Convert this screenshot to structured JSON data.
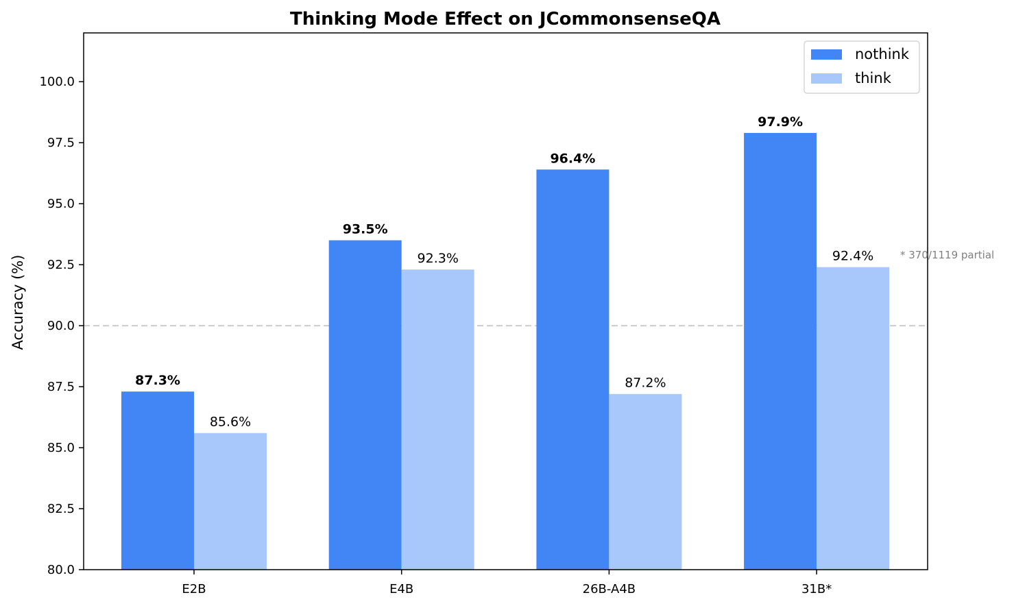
{
  "chart_data": {
    "type": "bar",
    "title": "Thinking Mode Effect on JCommonsenseQA",
    "xlabel": "",
    "ylabel": "Accuracy (%)",
    "ylim": [
      80.0,
      102.0
    ],
    "yticks": [
      "80.0",
      "82.5",
      "85.0",
      "87.5",
      "90.0",
      "92.5",
      "95.0",
      "97.5",
      "100.0"
    ],
    "yticks_values": [
      80.0,
      82.5,
      85.0,
      87.5,
      90.0,
      92.5,
      95.0,
      97.5,
      100.0
    ],
    "categories": [
      "E2B",
      "E4B",
      "26B-A4B",
      "31B*"
    ],
    "series": [
      {
        "name": "nothink",
        "color": "#4285F4",
        "values": [
          87.3,
          93.5,
          96.4,
          97.9
        ],
        "labels": [
          "87.3%",
          "93.5%",
          "96.4%",
          "97.9%"
        ],
        "label_weight": "bold"
      },
      {
        "name": "think",
        "color": "#A8C7FA",
        "values": [
          85.6,
          92.3,
          87.2,
          92.4
        ],
        "labels": [
          "85.6%",
          "92.3%",
          "87.2%",
          "92.4%"
        ],
        "label_weight": "normal"
      }
    ],
    "reference_line": {
      "value": 90.0,
      "style": "dashed",
      "color": "#cccccc"
    },
    "legend": {
      "placement": "top-right"
    },
    "grid": false,
    "annotation": {
      "text": "* 370/1119 partial",
      "color": "#808080"
    }
  }
}
